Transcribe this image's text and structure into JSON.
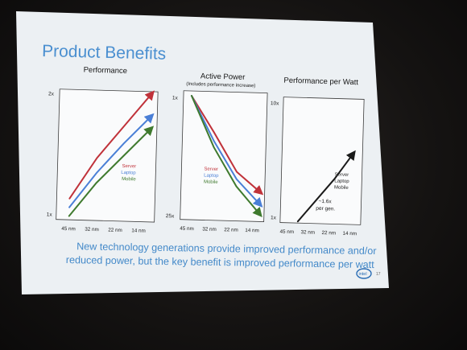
{
  "slide": {
    "title": "Product Benefits",
    "caption_line1": "New technology generations provide improved performance and/or",
    "caption_line2": "reduced power, but the key benefit is improved performance per watt",
    "logo_text": "intel",
    "page_number": "17"
  },
  "colors": {
    "server": "#c0323a",
    "laptop": "#4a7fd6",
    "mobile": "#3f7a2e",
    "black": "#1a1a1a",
    "title_blue": "#4a8fd0"
  },
  "chart_data": [
    {
      "type": "line",
      "title": "Performance",
      "subtitle": "",
      "categories": [
        "45 nm",
        "32 nm",
        "22 nm",
        "14 nm"
      ],
      "yticks": [
        "2x",
        "1x"
      ],
      "legend": [
        "Server",
        "Laptop",
        "Mobile"
      ],
      "legend_placement": "inside-right",
      "series": [
        {
          "name": "Server",
          "color": "#c0323a",
          "values": [
            1.15,
            1.48,
            1.74,
            2.0
          ]
        },
        {
          "name": "Laptop",
          "color": "#4a7fd6",
          "values": [
            1.08,
            1.36,
            1.6,
            1.82
          ]
        },
        {
          "name": "Mobile",
          "color": "#3f7a2e",
          "values": [
            1.01,
            1.28,
            1.5,
            1.72
          ]
        }
      ]
    },
    {
      "type": "line",
      "title": "Active Power",
      "subtitle": "(Includes performance increase)",
      "categories": [
        "45 nm",
        "32 nm",
        "22 nm",
        "14 nm"
      ],
      "yticks": [
        "1x",
        "25x"
      ],
      "legend": [
        "Server",
        "Laptop",
        "Mobile"
      ],
      "legend_placement": "inside-left",
      "series": [
        {
          "name": "Server",
          "color": "#c0323a",
          "values": [
            0.0,
            0.3,
            0.62,
            0.78
          ]
        },
        {
          "name": "Laptop",
          "color": "#4a7fd6",
          "values": [
            0.0,
            0.37,
            0.68,
            0.88
          ]
        },
        {
          "name": "Mobile",
          "color": "#3f7a2e",
          "values": [
            0.0,
            0.42,
            0.74,
            0.96
          ]
        }
      ]
    },
    {
      "type": "line",
      "title": "Performance per Watt",
      "subtitle": "",
      "categories": [
        "45 nm",
        "32 nm",
        "22 nm",
        "14 nm"
      ],
      "yticks": [
        "10x",
        "1x"
      ],
      "legend": [
        "Server",
        "Laptop",
        "Mobile"
      ],
      "legend_placement": "inside-right",
      "annotation_line1": "~1.6x",
      "annotation_line2": "per gen.",
      "series": [
        {
          "name": "Server / Laptop / Mobile",
          "color": "#1a1a1a",
          "values": [
            0.0,
            0.3,
            0.6,
            0.95
          ]
        }
      ]
    }
  ]
}
